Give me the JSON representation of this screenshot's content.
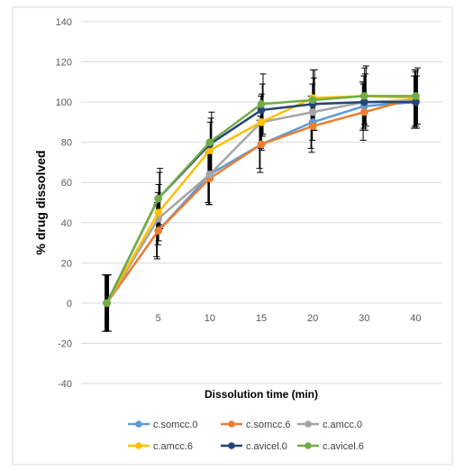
{
  "chart_data": {
    "type": "line",
    "title": "",
    "xlabel": "Dissolution time (min)",
    "ylabel": "% drug dissolved",
    "x": [
      "0",
      "5",
      "10",
      "15",
      "20",
      "30",
      "40"
    ],
    "ylim": [
      -40,
      140
    ],
    "yticks": [
      "140",
      "120",
      "100",
      "80",
      "60",
      "40",
      "20",
      "0",
      "-20",
      "-40"
    ],
    "grid": true,
    "legend_position": "bottom",
    "error_bars": true,
    "series": [
      {
        "name": "c.somcc.0",
        "color": "#5B9BD5",
        "values": [
          0,
          36,
          64,
          79,
          90,
          98,
          100
        ],
        "errors": [
          14,
          13,
          14,
          12,
          13,
          12,
          13
        ]
      },
      {
        "name": "c.somcc.6",
        "color": "#ED7D31",
        "values": [
          0,
          36,
          62,
          79,
          88,
          95,
          102
        ],
        "errors": [
          14,
          14,
          13,
          14,
          13,
          14,
          14
        ]
      },
      {
        "name": "c.amcc.0",
        "color": "#A5A5A5",
        "values": [
          0,
          42,
          64,
          90,
          95,
          100,
          101
        ],
        "errors": [
          14,
          13,
          15,
          13,
          14,
          13,
          14
        ]
      },
      {
        "name": "c.amcc.6",
        "color": "#FFC000",
        "values": [
          0,
          45,
          76,
          90,
          102,
          103,
          102
        ],
        "errors": [
          14,
          14,
          14,
          14,
          14,
          14,
          14
        ]
      },
      {
        "name": "c.avicel.0",
        "color": "#264478",
        "values": [
          0,
          52,
          79,
          96,
          99,
          100,
          100
        ],
        "errors": [
          14,
          13,
          13,
          13,
          13,
          14,
          13
        ]
      },
      {
        "name": "c.avicel.6",
        "color": "#70AD47",
        "values": [
          0,
          52,
          80,
          99,
          101,
          103,
          103
        ],
        "errors": [
          14,
          15,
          15,
          15,
          15,
          15,
          14
        ]
      }
    ]
  }
}
